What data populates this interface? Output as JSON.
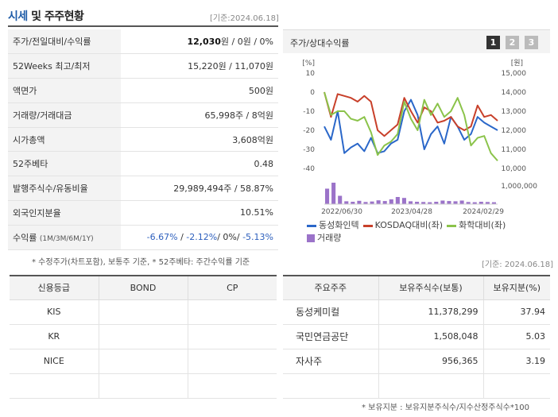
{
  "header": {
    "title_highlight": "시세",
    "title_rest": " 및 주주현황",
    "date": "[기준:2024.06.18]"
  },
  "stats": [
    {
      "key": "주가/전일대비/수익률",
      "price": "12,030",
      "price_unit": "원",
      "rest": " / 0원 / 0%"
    },
    {
      "key": "52Weeks 최고/최저",
      "value": "15,220원 / 11,070원"
    },
    {
      "key": "액면가",
      "value": "500원"
    },
    {
      "key": "거래량/거래대금",
      "value": "65,998주 / 8억원"
    },
    {
      "key": "시가총액",
      "value": "3,608억원"
    },
    {
      "key": "52주베타",
      "value": "0.48"
    },
    {
      "key": "발행주식수/유동비율",
      "value": "29,989,494주 / 58.87%"
    },
    {
      "key": "외국인지분율",
      "value": "10.51%"
    },
    {
      "key": "수익률",
      "key_sub": "(1M/3M/6M/1Y)",
      "r1": "-6.67%",
      "sep1": "/ ",
      "r2": "-2.12%",
      "sep2": "/ ",
      "r3": "0%",
      "sep3": "/ ",
      "r4": "-5.13%"
    }
  ],
  "stats_note": "* 수정주가(차트포함), 보통주 기준, * 52주베타: 주간수익률 기준",
  "chart_panel": {
    "title": "주가/상대수익률",
    "pages": [
      "1",
      "2",
      "3"
    ]
  },
  "chart_data": {
    "type": "line",
    "left_unit": "[%]",
    "right_unit": "[원]",
    "left_ticks": [
      "10",
      "0",
      "-10",
      "-20",
      "-30",
      "-40"
    ],
    "left_range": [
      -40,
      10
    ],
    "right_ticks": [
      "15,000",
      "14,000",
      "13,000",
      "12,000",
      "11,000",
      "10,000"
    ],
    "right_range": [
      10000,
      15000
    ],
    "volume_tick": "1,000,000",
    "x_labels": [
      "2022/06/30",
      "2023/04/28",
      "2024/02/29"
    ],
    "series": [
      {
        "name": "동성화인텍",
        "color": "#2a67c9",
        "axis": "left",
        "values": [
          -18,
          -25,
          -10,
          -32,
          -29,
          -27,
          -31,
          -24,
          -32,
          -31,
          -27,
          -25,
          -10,
          -4,
          -12,
          -30,
          -22,
          -18,
          -27,
          -13,
          -18,
          -25,
          -22,
          -13,
          -16,
          -18,
          -20
        ]
      },
      {
        "name": "KOSDAQ대비(좌)",
        "color": "#c8402a",
        "axis": "left",
        "values": [
          0,
          -13,
          -1,
          -2,
          -3,
          -5,
          -2,
          -5,
          -20,
          -23,
          -20,
          -17,
          -3,
          -10,
          -16,
          -8,
          -10,
          -16,
          -15,
          -13,
          -18,
          -20,
          -18,
          -7,
          -13,
          -12,
          -15
        ]
      },
      {
        "name": "화학대비(좌)",
        "color": "#8bc34a",
        "axis": "left",
        "values": [
          0,
          -12,
          -10,
          -10,
          -14,
          -15,
          -13,
          -21,
          -33,
          -28,
          -26,
          -22,
          -5,
          -14,
          -20,
          -4,
          -12,
          -6,
          -13,
          -10,
          -3,
          -12,
          -28,
          -24,
          -23,
          -32,
          -36
        ]
      }
    ],
    "volume": {
      "name": "거래량",
      "color": "#9b73c9",
      "values": [
        650000,
        900000,
        350000,
        120000,
        100000,
        140000,
        90000,
        110000,
        160000,
        130000,
        200000,
        300000,
        260000,
        120000,
        100000,
        90000,
        80000,
        100000,
        150000,
        130000,
        120000,
        150000,
        90000,
        80000,
        100000,
        90000,
        80000
      ],
      "max": 1000000
    }
  },
  "legend": [
    "동성화인텍",
    "KOSDAQ대비(좌)",
    "화학대비(좌)",
    "거래량"
  ],
  "mid_date": "[기준: 2024.06.18]",
  "credit": {
    "headers": [
      "신용등급",
      "BOND",
      "CP"
    ],
    "rows": [
      [
        "KIS",
        "",
        ""
      ],
      [
        "KR",
        "",
        ""
      ],
      [
        "NICE",
        "",
        ""
      ],
      [
        "",
        "",
        ""
      ]
    ]
  },
  "holders": {
    "headers": [
      "주요주주",
      "보유주식수(보통)",
      "보유지분(%)"
    ],
    "rows": [
      [
        "동성케미컬",
        "11,378,299",
        "37.94"
      ],
      [
        "국민연금공단",
        "1,508,048",
        "5.03"
      ],
      [
        "자사주",
        "956,365",
        "3.19"
      ],
      [
        "",
        "",
        ""
      ]
    ]
  },
  "holders_note": "* 보유지분 : 보유지분주식수/지수산정주식수*100"
}
